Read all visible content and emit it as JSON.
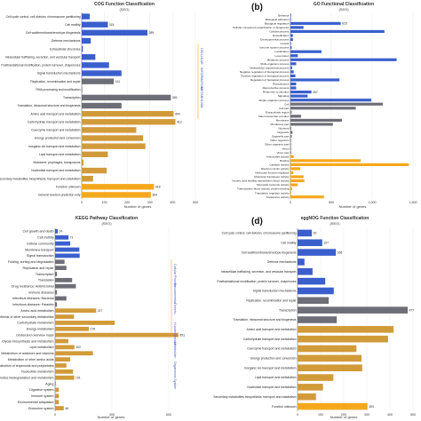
{
  "colors": {
    "blue": "#3a5fcd",
    "gray": "#6e6e78",
    "gold": "#d19b3a",
    "orange": "#f5a81c",
    "axis": "#333333",
    "grid": "#d9d9d9"
  },
  "chart_data": [
    {
      "panel": "a",
      "type": "bar",
      "orientation": "horizontal",
      "panel_label": "",
      "title": "COG Function Classification",
      "subtitle": "(SEO)",
      "xlabel": "Number of genes",
      "xlim": [
        0,
        500
      ],
      "xticks": [
        0,
        100,
        200,
        300,
        400,
        500
      ],
      "group_labels": [
        "CELLULAR",
        "INFORMATION",
        "METABOLISM"
      ],
      "categories": [
        "Cell cycle control, cell division, chromosome partitioning",
        "Cell motility",
        "Cell wall/membrane/envelope biogenesis",
        "Defense mechanisms",
        "Extracellular structures",
        "Intracellular trafficking, secretion, and vesicular transport",
        "Posttranslational modification, protein turnover, chaperones",
        "Signal transduction mechanisms",
        "Replication, recombination and repair",
        "RNA processing and modification",
        "Transcription",
        "Translation, ribosomal structure and biogenesis",
        "Amino acid transport and metabolism",
        "Carbohydrate transport and metabolism",
        "Coenzyme transport and metabolism",
        "Energy production and conversion",
        "Inorganic ion transport and metabolism",
        "Lipid transport and metabolism",
        "Mobilome: prophages, transposons",
        "Nucleotide transport and metabolism",
        "Secondary metabolites biosynthesis, transport and catabolism",
        "Function unknown",
        "General function prediction only"
      ],
      "values": [
        35,
        115,
        289,
        40,
        5,
        60,
        120,
        175,
        141,
        2,
        392,
        175,
        404,
        412,
        240,
        270,
        280,
        115,
        8,
        110,
        50,
        318,
        304
      ],
      "value_labels": [
        "",
        "115",
        "289",
        "",
        "",
        "",
        "",
        "",
        "141",
        "",
        "392",
        "",
        "404",
        "412",
        "",
        "",
        "",
        "",
        "",
        "",
        "",
        "318",
        "304"
      ],
      "groups": [
        "cellular",
        "cellular",
        "cellular",
        "cellular",
        "cellular",
        "cellular",
        "cellular",
        "cellular",
        "information",
        "information",
        "information",
        "information",
        "metabolism",
        "metabolism",
        "metabolism",
        "metabolism",
        "metabolism",
        "metabolism",
        "metabolism",
        "metabolism",
        "metabolism",
        "other",
        "other"
      ]
    },
    {
      "panel": "b",
      "type": "bar",
      "orientation": "horizontal",
      "panel_label": "(b)",
      "title": "GO Functional Classification",
      "subtitle": "(SEO)",
      "xlabel": "Number of genes",
      "xlim": [
        0,
        1500
      ],
      "xticks": [
        0,
        500,
        1000,
        1500
      ],
      "xtick_labels": [
        "0",
        "500",
        "1,000",
        "1,500"
      ],
      "categories": [
        "Behavior",
        "Biological adhesion",
        "Biological regulation",
        "Cellular component organization or biogenesis",
        "Cellular process",
        "Detoxification",
        "Developmental process",
        "Growth",
        "Immune system process",
        "Localization",
        "Locomotion",
        "Metabolic process",
        "Multi-organism process",
        "Multicellular organismal process",
        "Negative regulation of biological process",
        "Positive regulation of biological process",
        "Regulation of biological process",
        "Reproduction",
        "Reproductive process",
        "Response to stimulus",
        "Signaling",
        "Single-organism process",
        "Cell",
        "Cell part",
        "Extracellular region",
        "Macromolecular complex",
        "Membrane",
        "Membrane part",
        "Nucleoid",
        "Organelle",
        "Organelle part",
        "Other organism",
        "Other organism part",
        "Virion",
        "Virion part",
        "Antioxidant activity",
        "Binding",
        "Catalytic activity",
        "Electron carrier activity",
        "Molecular function regulator",
        "Molecular transducer activity",
        "Nucleic acid binding transcription factor activity",
        "Structural molecule activity",
        "Transcription factor activity, protein binding",
        "Translation regulator activity",
        "Transporter activity"
      ],
      "values": [
        8,
        8,
        615,
        160,
        1150,
        30,
        30,
        8,
        15,
        380,
        90,
        1300,
        70,
        20,
        40,
        60,
        600,
        70,
        70,
        257,
        210,
        990,
        1130,
        800,
        15,
        130,
        630,
        520,
        10,
        25,
        15,
        8,
        8,
        8,
        8,
        40,
        860,
        1450,
        120,
        35,
        160,
        170,
        90,
        20,
        10,
        410
      ],
      "value_labels": [
        "",
        "",
        "615",
        "",
        "",
        "",
        "",
        "",
        "",
        "",
        "",
        "",
        "",
        "",
        "",
        "",
        "",
        "",
        "",
        "257",
        "",
        "",
        "",
        "",
        "",
        "",
        "",
        "",
        "",
        "",
        "",
        "",
        "",
        "",
        "",
        "",
        "",
        "",
        "",
        "",
        "",
        "",
        "",
        "",
        "",
        ""
      ],
      "groups": [
        "bp",
        "bp",
        "bp",
        "bp",
        "bp",
        "bp",
        "bp",
        "bp",
        "bp",
        "bp",
        "bp",
        "bp",
        "bp",
        "bp",
        "bp",
        "bp",
        "bp",
        "bp",
        "bp",
        "bp",
        "bp",
        "bp",
        "cc",
        "cc",
        "cc",
        "cc",
        "cc",
        "cc",
        "cc",
        "cc",
        "cc",
        "cc",
        "cc",
        "cc",
        "cc",
        "mf",
        "mf",
        "mf",
        "mf",
        "mf",
        "mf",
        "mf",
        "mf",
        "mf",
        "mf",
        "mf"
      ]
    },
    {
      "panel": "c",
      "type": "bar",
      "orientation": "horizontal",
      "panel_label": "",
      "title": "KEGG Pathway Classification",
      "subtitle": "(SEO)",
      "xlabel": "Number of genes",
      "xlim": [
        0,
        600
      ],
      "xticks": [
        0,
        300,
        600
      ],
      "group_labels": [
        "Cellular Process",
        "Environmental",
        "Genetic",
        "Human Disease",
        "Metabolism",
        "Organismal System"
      ],
      "categories": [
        "Cell growth and death",
        "Cell motility",
        "Cellular community",
        "Membrane transport",
        "Signal transduction",
        "Folding, sorting and degradation",
        "Replication and repair",
        "Transcription",
        "Translation",
        "Drug resistance: Antimicrobial",
        "Immune diseases",
        "Infectious diseases: Bacterial",
        "Infectious diseases: Parasitic",
        "Amino acid metabolism",
        "Biosynthesis of other secondary metabolites",
        "Carbohydrate metabolism",
        "Energy metabolism",
        "Global and overview maps",
        "Glycan biosynthesis and metabolism",
        "Lipid metabolism",
        "Metabolism of cofactors and vitamins",
        "Metabolism of other amino acids",
        "Metabolism of terpenoids and polyketides",
        "Nucleotide metabolism",
        "Xenobiotics biodegradation and metabolism",
        "Aging",
        "Digestive system",
        "Immune system",
        "Environmental adaptation",
        "Endocrine system"
      ],
      "values": [
        14,
        71,
        80,
        128,
        130,
        50,
        60,
        10,
        90,
        110,
        10,
        60,
        10,
        217,
        100,
        315,
        178,
        651,
        70,
        102,
        200,
        80,
        60,
        95,
        101,
        5,
        20,
        20,
        20,
        46
      ],
      "value_labels": [
        "14",
        "71",
        "",
        "",
        "",
        "",
        "",
        "",
        "",
        "",
        "",
        "",
        "",
        "217",
        "",
        "",
        "178",
        "651",
        "",
        "102",
        "",
        "",
        "",
        "",
        "101",
        "",
        "",
        "",
        "",
        "46"
      ],
      "groups": [
        "cp",
        "cp",
        "cp",
        "env",
        "env",
        "gen",
        "gen",
        "gen",
        "gen",
        "hd",
        "hd",
        "hd",
        "hd",
        "met",
        "met",
        "met",
        "met",
        "met",
        "met",
        "met",
        "met",
        "met",
        "met",
        "met",
        "met",
        "org",
        "org",
        "org",
        "org",
        "org"
      ]
    },
    {
      "panel": "d",
      "type": "bar",
      "orientation": "horizontal",
      "panel_label": "(d)",
      "title": "eggNOG Function Classification",
      "subtitle": "(SEO)",
      "xlabel": "Number of genes",
      "xlim": [
        0,
        500
      ],
      "xticks": [
        0,
        100,
        200,
        300,
        400,
        500
      ],
      "categories": [
        "Cell cycle control, cell division, chromosome partitioning",
        "Cell motility",
        "Cell wall/membrane/envelope biogenesis",
        "Defense mechanisms",
        "Intracellular trafficking, secretion, and vesicular transport",
        "Posttranslational modification, protein turnover, chaperones",
        "Signal transduction mechanisms",
        "Replication, recombination and repair",
        "Transcription",
        "Translation, ribosomal structure and biogenesis",
        "Amino acid transport and metabolism",
        "Carbohydrate transport and metabolism",
        "Coenzyme transport and metabolism",
        "Energy production and conversion",
        "Inorganic ion transport and metabolism",
        "Lipid transport and metabolism",
        "Nucleotide transport and metabolism",
        "Secondary metabolites biosynthesis, transport and catabolism",
        "Function unknown"
      ],
      "values": [
        62,
        107,
        166,
        30,
        65,
        120,
        157,
        135,
        477,
        170,
        416,
        392,
        255,
        277,
        280,
        155,
        110,
        80,
        303
      ],
      "value_labels": [
        "62",
        "107",
        "166",
        "",
        "",
        "",
        "",
        "",
        "477",
        "",
        "",
        "",
        "",
        "",
        "",
        "",
        "",
        "",
        "303"
      ],
      "groups": [
        "cellular",
        "cellular",
        "cellular",
        "cellular",
        "cellular",
        "cellular",
        "cellular",
        "information",
        "information",
        "information",
        "metabolism",
        "metabolism",
        "metabolism",
        "metabolism",
        "metabolism",
        "metabolism",
        "metabolism",
        "metabolism",
        "other"
      ]
    }
  ]
}
